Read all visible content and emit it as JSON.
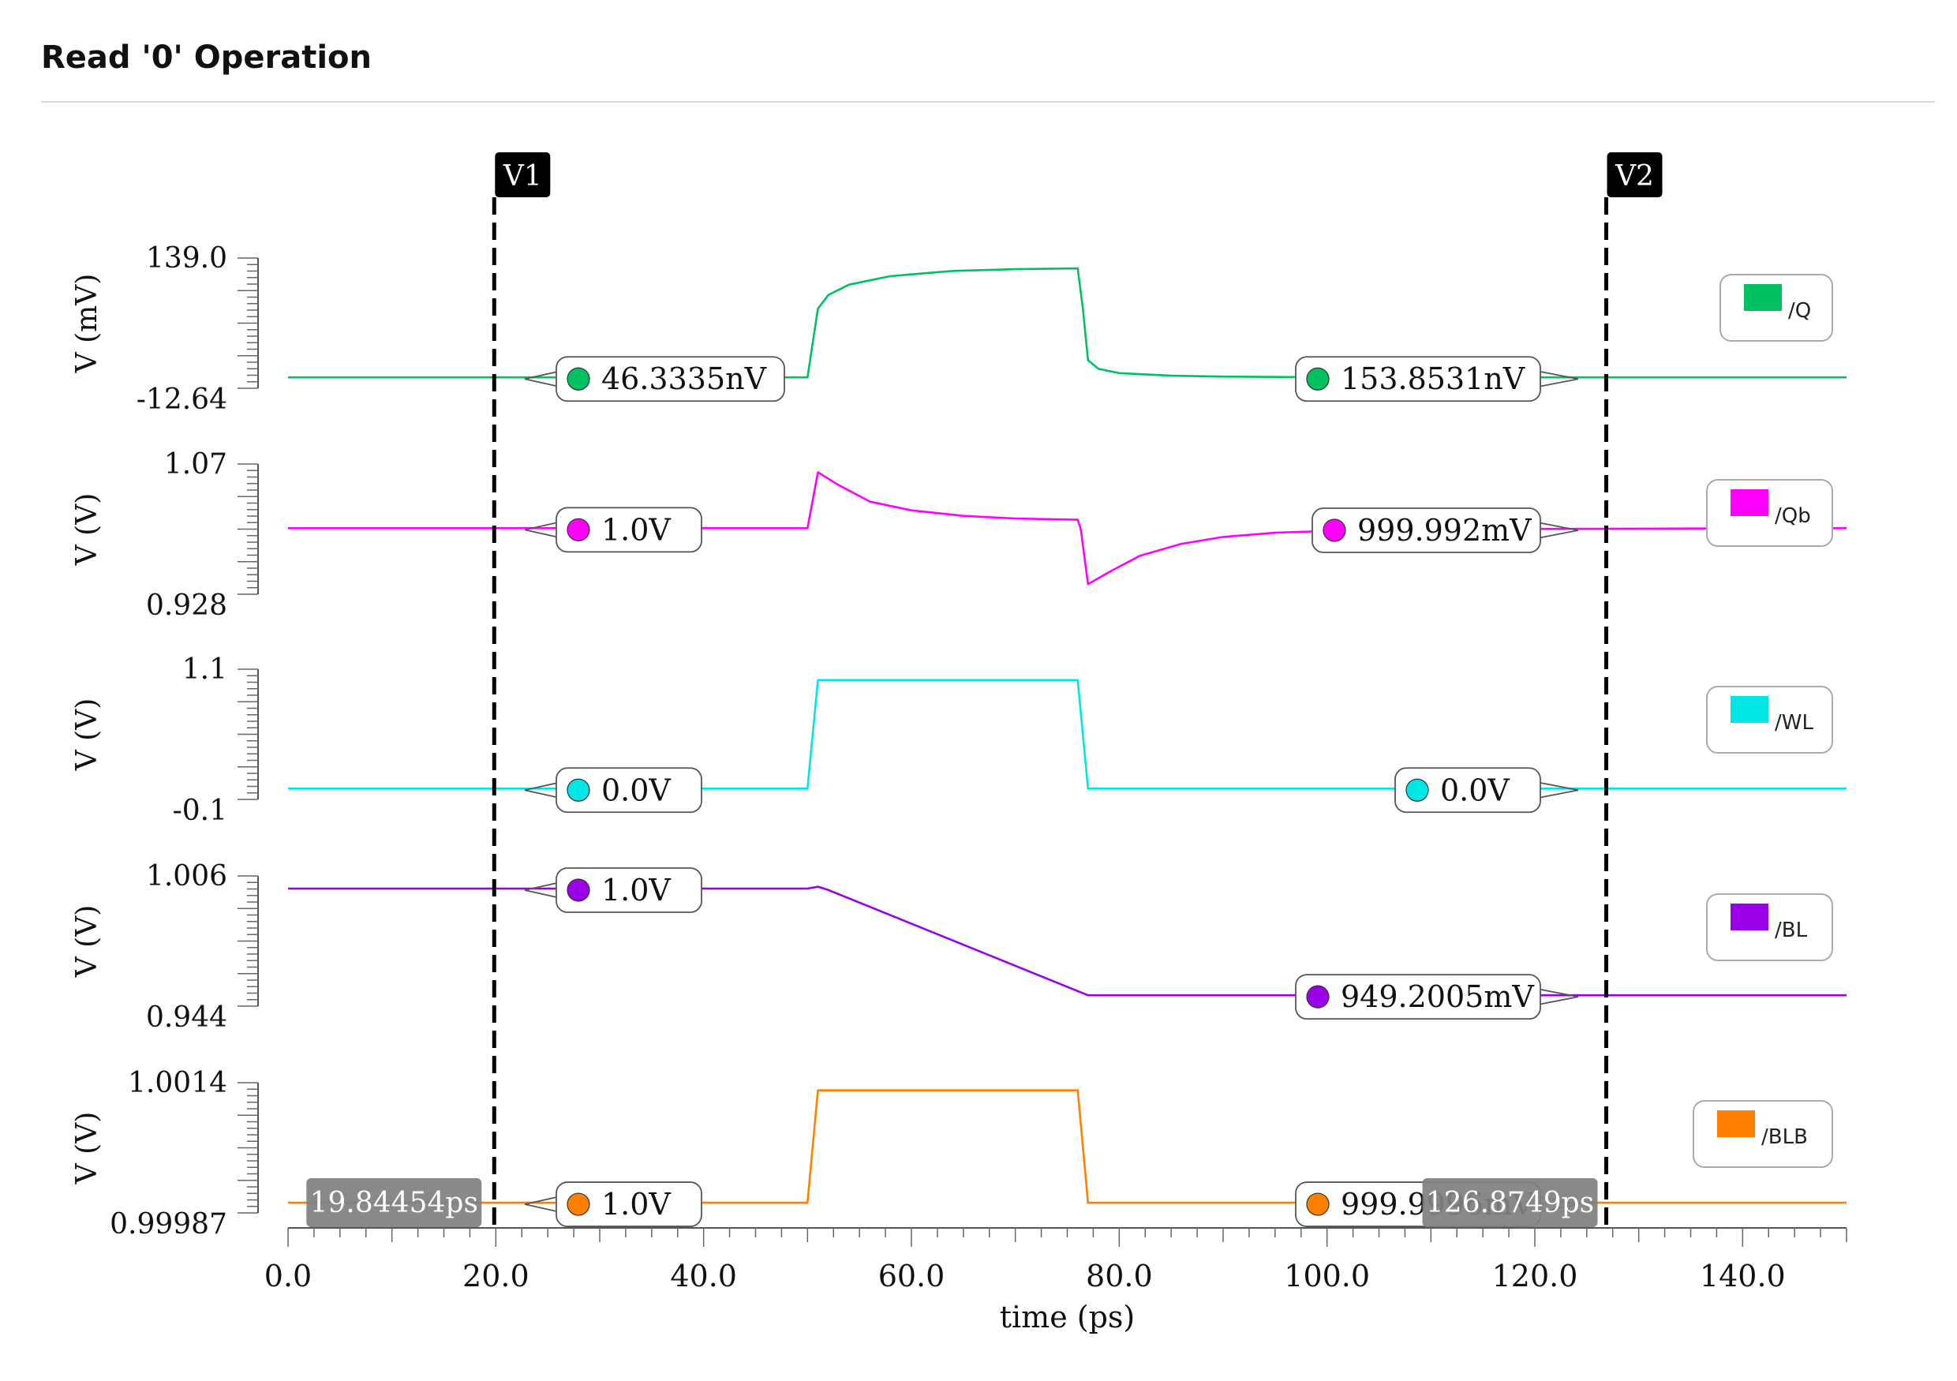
{
  "title": "Read '0' Operation",
  "chart_data": {
    "type": "line",
    "title": "Read '0' Operation",
    "xlabel": "time (ps)",
    "xlim": [
      0,
      150
    ],
    "xticks": [
      "0.0",
      "20.0",
      "40.0",
      "60.0",
      "80.0",
      "100.0",
      "120.0",
      "140.0"
    ],
    "cursors": [
      {
        "name": "V1",
        "x": 19.84454,
        "x_label": "19.84454ps"
      },
      {
        "name": "V2",
        "x": 126.8749,
        "x_label": "126.8749ps"
      }
    ],
    "panels": [
      {
        "signal": "/Q",
        "ylabel": "V (mV)",
        "ymax_label": "139.0",
        "ymin_label": "-12.64",
        "ylim": [
          -12.64,
          139.0
        ],
        "color": "#00c060",
        "x": [
          0,
          50,
          50.5,
          51,
          52,
          54,
          58,
          64,
          70,
          76,
          76.5,
          77,
          78,
          80,
          85,
          90,
          100,
          110,
          120,
          150
        ],
        "y": [
          0,
          0,
          40,
          80,
          96,
          108,
          118,
          124,
          126,
          127,
          80,
          20,
          10,
          5,
          2,
          1,
          0,
          0,
          0,
          0
        ],
        "marker1_label": "46.3335nV",
        "marker2_label": "153.8531nV"
      },
      {
        "signal": "/Qb",
        "ylabel": "V (V)",
        "ymax_label": "1.07",
        "ymin_label": "0.928",
        "ylim": [
          0.928,
          1.07
        ],
        "color": "#ff00ff",
        "x": [
          0,
          50,
          51,
          53,
          56,
          60,
          65,
          70,
          76,
          76.3,
          77,
          79,
          82,
          86,
          90,
          95,
          100,
          110,
          150
        ],
        "y": [
          1.0,
          1.0,
          1.061,
          1.047,
          1.029,
          1.0195,
          1.0135,
          1.0105,
          1.0092,
          0.999,
          0.939,
          0.952,
          0.97,
          0.983,
          0.9905,
          0.995,
          0.997,
          0.999,
          1.0
        ],
        "marker1_label": "1.0V",
        "marker2_label": "999.992mV"
      },
      {
        "signal": "/WL",
        "ylabel": "V (V)",
        "ymax_label": "1.1",
        "ymin_label": "-0.1",
        "ylim": [
          -0.1,
          1.1
        ],
        "color": "#00e5e5",
        "x": [
          0,
          50,
          51,
          76,
          77,
          150
        ],
        "y": [
          0.0,
          0.0,
          1.0,
          1.0,
          0.0,
          0.0
        ],
        "marker1_label": "0.0V",
        "marker2_label": "0.0V"
      },
      {
        "signal": "/BL",
        "ylabel": "V (V)",
        "ymax_label": "1.006",
        "ymin_label": "0.944",
        "ylim": [
          0.944,
          1.006
        ],
        "color": "#9900e6",
        "x": [
          0,
          50,
          51,
          52,
          77,
          150
        ],
        "y": [
          1.0,
          1.0,
          1.0009,
          0.9993,
          0.9492,
          0.9492
        ],
        "marker1_label": "1.0V",
        "marker2_label": "949.2005mV"
      },
      {
        "signal": "/BLB",
        "ylabel": "V (V)",
        "ymax_label": "1.0014",
        "ymin_label": "0.99987",
        "ylim": [
          0.99987,
          1.0014
        ],
        "color": "#ff8000",
        "x": [
          0,
          50,
          51,
          76,
          77,
          150
        ],
        "y": [
          0.99999,
          0.99999,
          1.00131,
          1.00131,
          0.99999,
          0.99999
        ],
        "marker1_label": "1.0V",
        "marker2_label": "999.9996mV"
      }
    ]
  }
}
